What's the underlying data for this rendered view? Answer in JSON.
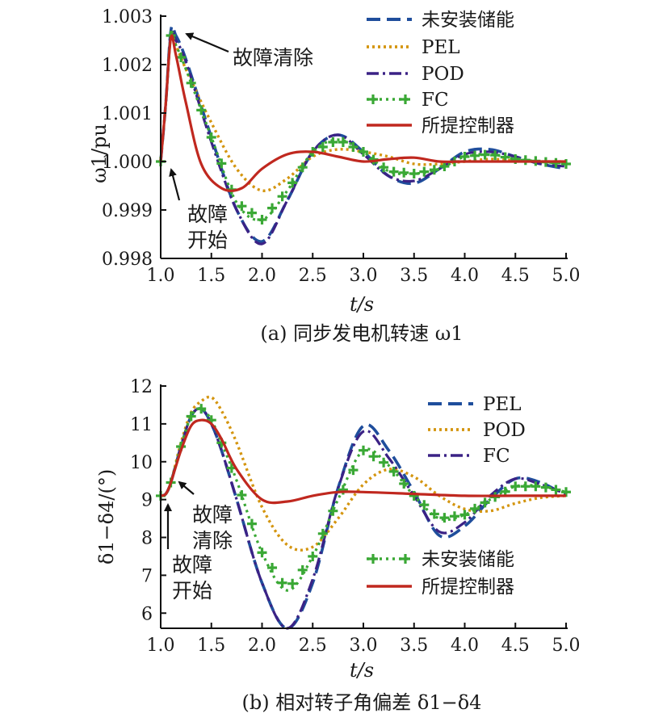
{
  "charts": [
    {
      "caption": "(a) 同步发电机转速 ω1",
      "ylabel": "ω1/pu",
      "xlabel": "t/s",
      "xticks": [
        "1.0",
        "1.5",
        "2.0",
        "2.5",
        "3.0",
        "3.5",
        "4.0",
        "4.5",
        "5.0"
      ],
      "yticks": [
        "0.998",
        "0.999",
        "1.000",
        "1.001",
        "1.002",
        "1.003"
      ],
      "legend": [
        "未安装储能",
        "PEL",
        "POD",
        "FC",
        "所提控制器"
      ],
      "annotations": [
        {
          "text": "故障清除"
        },
        {
          "text": "故障"
        },
        {
          "text": "开始"
        }
      ]
    },
    {
      "caption": "(b) 相对转子角偏差 δ1−δ4",
      "ylabel": "δ1−δ4/(°)",
      "xlabel": "t/s",
      "xticks": [
        "1.0",
        "1.5",
        "2.0",
        "2.5",
        "3.0",
        "3.5",
        "4.0",
        "4.5",
        "5.0"
      ],
      "yticks": [
        "6",
        "7",
        "8",
        "9",
        "10",
        "11",
        "12"
      ],
      "legend": [
        "PEL",
        "POD",
        "FC",
        "未安装储能",
        "所提控制器"
      ],
      "annotations": [
        {
          "text": "故障"
        },
        {
          "text": "清除"
        },
        {
          "text": "故障"
        },
        {
          "text": "开始"
        }
      ]
    }
  ],
  "chart_data": [
    {
      "type": "line",
      "title": "(a) 同步发电机转速 ω1",
      "xlabel": "t/s",
      "ylabel": "ω1/pu",
      "xlim": [
        1.0,
        5.0
      ],
      "ylim": [
        0.998,
        1.003
      ],
      "legend_position": "top-right",
      "series": [
        {
          "name": "未安装储能",
          "color": "#1f4e9c",
          "dash": "dashed",
          "x": [
            1.0,
            1.05,
            1.1,
            1.15,
            1.25,
            1.5,
            1.75,
            2.0,
            2.25,
            2.5,
            2.75,
            3.0,
            3.25,
            3.5,
            3.75,
            4.0,
            4.25,
            4.5,
            4.75,
            5.0
          ],
          "y": [
            1.0,
            1.0012,
            1.0027,
            1.0026,
            1.0021,
            1.0005,
            0.999,
            0.99835,
            0.9992,
            1.0002,
            1.00055,
            1.0002,
            0.9997,
            0.99955,
            0.99985,
            1.0002,
            1.00025,
            1.0001,
            0.99995,
            0.99985
          ]
        },
        {
          "name": "PEL",
          "color": "#d4950f",
          "dash": "dotted",
          "x": [
            1.0,
            1.05,
            1.1,
            1.15,
            1.25,
            1.5,
            1.75,
            2.0,
            2.25,
            2.5,
            2.75,
            3.0,
            3.25,
            3.5,
            3.75,
            4.0,
            4.25,
            4.5,
            4.75,
            5.0
          ],
          "y": [
            1.0,
            1.0012,
            1.0026,
            1.0024,
            1.0019,
            1.0008,
            0.99985,
            0.9994,
            0.99965,
            1.0001,
            1.00025,
            1.0002,
            1.0001,
            0.99995,
            0.99995,
            1.0,
            1.00005,
            1.00002,
            1.0,
            1.0
          ]
        },
        {
          "name": "POD",
          "color": "#3b2285",
          "dash": "dashdot",
          "x": [
            1.0,
            1.05,
            1.1,
            1.15,
            1.25,
            1.5,
            1.75,
            2.0,
            2.25,
            2.5,
            2.75,
            3.0,
            3.25,
            3.5,
            3.75,
            4.0,
            4.25,
            4.5,
            4.75,
            5.0
          ],
          "y": [
            1.0,
            1.0012,
            1.00265,
            1.0025,
            1.00205,
            1.0004,
            0.999,
            0.9983,
            0.9992,
            1.0002,
            1.00055,
            1.00015,
            0.9997,
            0.9996,
            0.99985,
            1.00015,
            1.0002,
            1.0001,
            0.99995,
            0.9999
          ]
        },
        {
          "name": "FC",
          "color": "#3aa835",
          "dash": "plusdot",
          "x": [
            1.0,
            1.05,
            1.1,
            1.15,
            1.25,
            1.5,
            1.75,
            2.0,
            2.25,
            2.5,
            2.75,
            3.0,
            3.25,
            3.5,
            3.75,
            4.0,
            4.25,
            4.5,
            4.75,
            5.0
          ],
          "y": [
            1.0,
            1.0012,
            1.0026,
            1.0024,
            1.0019,
            1.0005,
            0.99915,
            0.9988,
            0.9994,
            1.0002,
            1.00045,
            1.0002,
            0.9998,
            0.99975,
            0.99985,
            1.0001,
            1.00015,
            1.00005,
            1.0,
            0.99995
          ]
        },
        {
          "name": "所提控制器",
          "color": "#c0281f",
          "dash": "solid",
          "x": [
            1.0,
            1.05,
            1.1,
            1.15,
            1.25,
            1.4,
            1.6,
            1.8,
            2.0,
            2.25,
            2.5,
            2.75,
            3.0,
            3.25,
            3.5,
            3.75,
            4.0,
            4.5,
            5.0
          ],
          "y": [
            1.0,
            1.0012,
            1.00255,
            1.0022,
            1.0012,
            0.99995,
            0.99945,
            0.99945,
            0.99985,
            1.00015,
            1.0002,
            1.0001,
            1.0,
            1.00005,
            1.00008,
            1.0,
            1.0,
            1.0,
            1.0
          ]
        }
      ]
    },
    {
      "type": "line",
      "title": "(b) 相对转子角偏差 δ1−δ4",
      "xlabel": "t/s",
      "ylabel": "δ1−δ4/(°)",
      "xlim": [
        1.0,
        5.0
      ],
      "ylim": [
        5.6,
        12
      ],
      "legend_position": "top-right",
      "series": [
        {
          "name": "PEL",
          "color": "#1f4e9c",
          "dash": "dashed",
          "x": [
            1.0,
            1.05,
            1.1,
            1.2,
            1.3,
            1.4,
            1.5,
            1.6,
            1.75,
            2.0,
            2.25,
            2.5,
            2.75,
            3.0,
            3.25,
            3.5,
            3.75,
            4.0,
            4.25,
            4.5,
            4.75,
            5.0
          ],
          "y": [
            9.1,
            9.15,
            9.45,
            10.4,
            11.2,
            11.4,
            11.0,
            10.3,
            9.0,
            6.8,
            5.6,
            6.8,
            9.3,
            10.95,
            10.3,
            9.2,
            8.05,
            8.3,
            9.0,
            9.55,
            9.45,
            9.1
          ]
        },
        {
          "name": "POD",
          "color": "#d4950f",
          "dash": "dotted",
          "x": [
            1.0,
            1.05,
            1.1,
            1.2,
            1.3,
            1.4,
            1.5,
            1.6,
            1.75,
            2.0,
            2.25,
            2.5,
            2.75,
            3.0,
            3.25,
            3.5,
            3.75,
            4.0,
            4.25,
            4.5,
            4.75,
            5.0
          ],
          "y": [
            9.1,
            9.15,
            9.45,
            10.5,
            11.3,
            11.6,
            11.7,
            11.35,
            10.5,
            8.8,
            7.8,
            7.75,
            8.5,
            9.4,
            9.8,
            9.6,
            9.1,
            8.75,
            8.7,
            8.9,
            9.05,
            9.1
          ]
        },
        {
          "name": "FC",
          "color": "#3b2285",
          "dash": "dashdot",
          "x": [
            1.0,
            1.05,
            1.1,
            1.2,
            1.3,
            1.4,
            1.5,
            1.6,
            1.75,
            2.0,
            2.25,
            2.5,
            2.75,
            3.0,
            3.25,
            3.5,
            3.75,
            4.0,
            4.25,
            4.5,
            4.75,
            5.0
          ],
          "y": [
            9.1,
            9.15,
            9.45,
            10.4,
            11.2,
            11.4,
            11.0,
            10.3,
            9.0,
            6.8,
            5.6,
            6.9,
            9.3,
            10.8,
            10.1,
            9.1,
            8.15,
            8.4,
            9.1,
            9.55,
            9.4,
            9.15
          ]
        },
        {
          "name": "未安装储能",
          "color": "#3aa835",
          "dash": "plusdot",
          "x": [
            1.0,
            1.05,
            1.1,
            1.2,
            1.3,
            1.4,
            1.5,
            1.6,
            1.75,
            2.0,
            2.25,
            2.5,
            2.75,
            3.0,
            3.25,
            3.5,
            3.75,
            4.0,
            4.25,
            4.5,
            4.75,
            5.0
          ],
          "y": [
            9.1,
            9.15,
            9.45,
            10.4,
            11.2,
            11.4,
            11.1,
            10.5,
            9.5,
            7.6,
            6.6,
            7.5,
            9.0,
            10.3,
            9.9,
            9.1,
            8.5,
            8.6,
            9.0,
            9.35,
            9.35,
            9.2
          ]
        },
        {
          "name": "所提控制器",
          "color": "#c0281f",
          "dash": "solid",
          "x": [
            1.0,
            1.05,
            1.1,
            1.2,
            1.3,
            1.4,
            1.5,
            1.6,
            1.75,
            2.0,
            2.25,
            2.5,
            2.75,
            3.0,
            3.5,
            4.0,
            4.5,
            5.0
          ],
          "y": [
            9.1,
            9.15,
            9.45,
            10.3,
            10.95,
            11.1,
            11.0,
            10.6,
            9.8,
            9.0,
            8.95,
            9.1,
            9.2,
            9.2,
            9.15,
            9.1,
            9.1,
            9.1
          ]
        }
      ]
    }
  ]
}
